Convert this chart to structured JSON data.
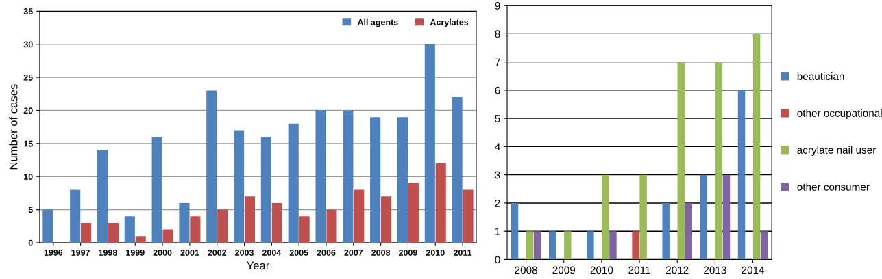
{
  "chart_data": [
    {
      "type": "bar",
      "ylabel": "Number of cases",
      "xlabel": "Year",
      "categories": [
        "1996",
        "1997",
        "1998",
        "1999",
        "2000",
        "2001",
        "2002",
        "2003",
        "2004",
        "2005",
        "2006",
        "2007",
        "2008",
        "2009",
        "2010",
        "2011"
      ],
      "series": [
        {
          "name": "All agents",
          "color": "#4f81bd",
          "values": [
            5,
            8,
            14,
            4,
            16,
            6,
            23,
            17,
            16,
            18,
            20,
            20,
            19,
            19,
            30,
            22
          ]
        },
        {
          "name": "Acrylates",
          "color": "#c0504d",
          "values": [
            0,
            3,
            3,
            1,
            2,
            4,
            5,
            7,
            6,
            4,
            5,
            8,
            7,
            9,
            12,
            8
          ]
        }
      ],
      "ylim": [
        0,
        35
      ],
      "yticks": [
        0,
        5,
        10,
        15,
        20,
        25,
        30,
        35
      ],
      "grid": "y",
      "legend": "top right"
    },
    {
      "type": "bar",
      "categories": [
        "2008",
        "2009",
        "2010",
        "2011",
        "2012",
        "2013",
        "2014"
      ],
      "series": [
        {
          "name": "beautician",
          "color": "#4f81bd",
          "values": [
            2,
            1,
            1,
            0,
            2,
            3,
            6
          ]
        },
        {
          "name": "other occupational",
          "color": "#c0504d",
          "values": [
            0,
            0,
            0,
            1,
            0,
            0,
            0
          ]
        },
        {
          "name": "acrylate nail user",
          "color": "#9bbb59",
          "values": [
            1,
            1,
            3,
            3,
            7,
            7,
            8
          ]
        },
        {
          "name": "other consumer",
          "color": "#8064a2",
          "values": [
            1,
            0,
            1,
            0,
            2,
            3,
            1
          ]
        }
      ],
      "ylim": [
        0,
        9
      ],
      "yticks": [
        0,
        1,
        2,
        3,
        4,
        5,
        6,
        7,
        8,
        9
      ],
      "grid": "y",
      "legend": "right"
    }
  ]
}
